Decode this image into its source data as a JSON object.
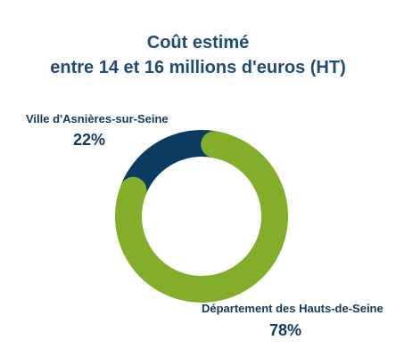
{
  "chart_data": {
    "type": "pie",
    "title_lines": [
      "Coût estimé",
      "entre 14 et 16 millions d'euros (HT)"
    ],
    "categories": [
      "Ville d'Asnières-sur-Seine",
      "Département des Hauts-de-Seine"
    ],
    "values": [
      22,
      78
    ],
    "value_labels": [
      "22%",
      "78%"
    ],
    "colors": [
      "#0c3b61",
      "#82ae2a"
    ]
  }
}
